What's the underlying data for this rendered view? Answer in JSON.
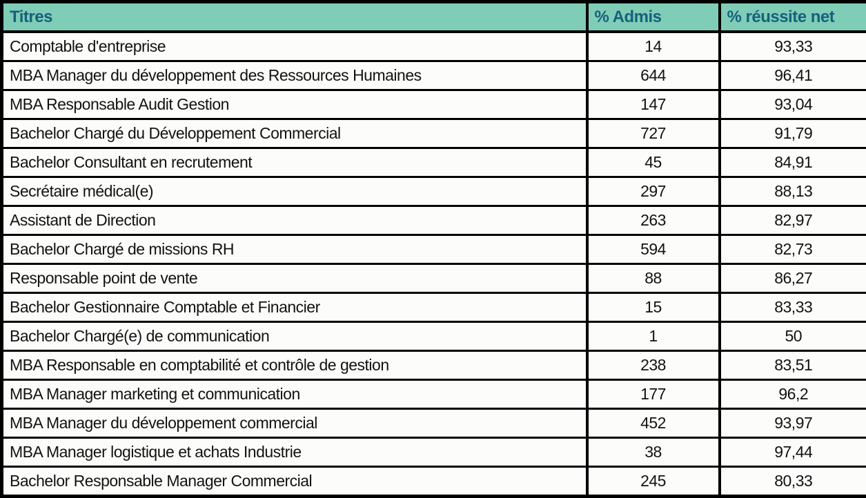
{
  "table": {
    "headers": {
      "titres": "Titres",
      "admis": "% Admis",
      "reussite": "% réussite net"
    },
    "rows": [
      {
        "titre": "Comptable d'entreprise",
        "admis": "14",
        "reussite": "93,33"
      },
      {
        "titre": "MBA Manager du développement des Ressources Humaines",
        "admis": "644",
        "reussite": "96,41"
      },
      {
        "titre": "MBA Responsable Audit Gestion",
        "admis": "147",
        "reussite": "93,04"
      },
      {
        "titre": "Bachelor Chargé du Développement Commercial",
        "admis": "727",
        "reussite": "91,79"
      },
      {
        "titre": "Bachelor Consultant en recrutement",
        "admis": "45",
        "reussite": "84,91"
      },
      {
        "titre": "Secrétaire médical(e)",
        "admis": "297",
        "reussite": "88,13"
      },
      {
        "titre": "Assistant de Direction",
        "admis": "263",
        "reussite": "82,97"
      },
      {
        "titre": "Bachelor Chargé de missions RH",
        "admis": "594",
        "reussite": "82,73"
      },
      {
        "titre": "Responsable point de vente",
        "admis": "88",
        "reussite": "86,27"
      },
      {
        "titre": "Bachelor Gestionnaire Comptable et Financier",
        "admis": "15",
        "reussite": "83,33"
      },
      {
        "titre": "Bachelor Chargé(e) de communication",
        "admis": "1",
        "reussite": "50"
      },
      {
        "titre": "MBA Responsable en comptabilité et contrôle de gestion",
        "admis": "238",
        "reussite": "83,51"
      },
      {
        "titre": "MBA Manager marketing et communication",
        "admis": "177",
        "reussite": "96,2"
      },
      {
        "titre": "MBA Manager du développement commercial",
        "admis": "452",
        "reussite": "93,97"
      },
      {
        "titre": "MBA Manager logistique et achats Industrie",
        "admis": "38",
        "reussite": "97,44"
      },
      {
        "titre": "Bachelor Responsable Manager Commercial",
        "admis": "245",
        "reussite": "80,33"
      }
    ]
  },
  "colors": {
    "header_bg": "#7FCDB7",
    "header_text": "#17607C",
    "border": "#000000",
    "cell_bg": "#FCFCFA",
    "cell_text": "#121212"
  },
  "chart_data": {
    "type": "table",
    "columns": [
      "Titres",
      "% Admis",
      "% réussite net"
    ],
    "rows": [
      [
        "Comptable d'entreprise",
        14,
        93.33
      ],
      [
        "MBA Manager du développement des Ressources Humaines",
        644,
        96.41
      ],
      [
        "MBA Responsable Audit Gestion",
        147,
        93.04
      ],
      [
        "Bachelor Chargé du Développement Commercial",
        727,
        91.79
      ],
      [
        "Bachelor Consultant en recrutement",
        45,
        84.91
      ],
      [
        "Secrétaire médical(e)",
        297,
        88.13
      ],
      [
        "Assistant de Direction",
        263,
        82.97
      ],
      [
        "Bachelor Chargé de missions RH",
        594,
        82.73
      ],
      [
        "Responsable point de vente",
        88,
        86.27
      ],
      [
        "Bachelor Gestionnaire Comptable et Financier",
        15,
        83.33
      ],
      [
        "Bachelor Chargé(e) de communication",
        1,
        50
      ],
      [
        "MBA Responsable en comptabilité et contrôle de gestion",
        238,
        83.51
      ],
      [
        "MBA Manager marketing et communication",
        177,
        96.2
      ],
      [
        "MBA Manager du développement commercial",
        452,
        93.97
      ],
      [
        "MBA Manager logistique et achats Industrie",
        38,
        97.44
      ],
      [
        "Bachelor Responsable Manager Commercial",
        245,
        80.33
      ]
    ]
  }
}
